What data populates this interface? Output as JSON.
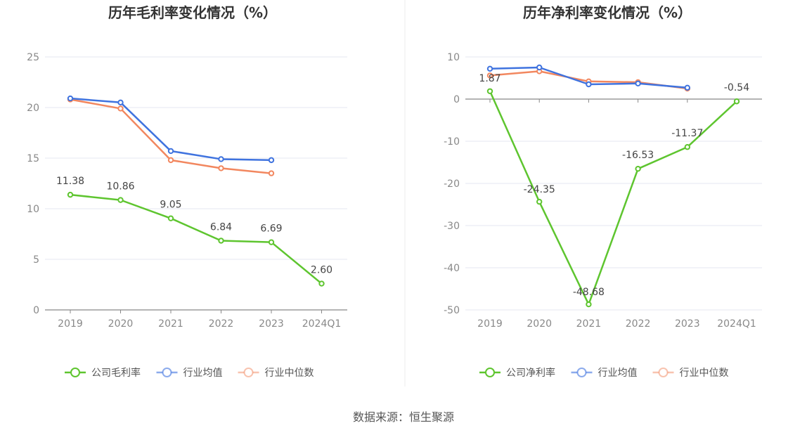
{
  "source": "数据来源：恒生聚源",
  "colors": {
    "company": "#5ec52f",
    "avg": "#3f73df",
    "median": "#f2875f",
    "grid": "#e4e7f0",
    "axis": "#888888"
  },
  "chart_data": [
    {
      "type": "line",
      "title": "历年毛利率变化情况（%）",
      "categories": [
        "2019",
        "2020",
        "2021",
        "2022",
        "2023",
        "2024Q1"
      ],
      "ylim": [
        0,
        25
      ],
      "yticks": [
        0,
        5,
        10,
        15,
        20,
        25
      ],
      "series": [
        {
          "key": "company",
          "name": "公司毛利率",
          "values": [
            11.38,
            10.86,
            9.05,
            6.84,
            6.69,
            2.6
          ],
          "labels": [
            "11.38",
            "10.86",
            "9.05",
            "6.84",
            "6.69",
            "2.60"
          ]
        },
        {
          "key": "avg",
          "name": "行业均值",
          "values": [
            20.9,
            20.5,
            15.7,
            14.9,
            14.8,
            null
          ]
        },
        {
          "key": "median",
          "name": "行业中位数",
          "values": [
            20.8,
            19.9,
            14.8,
            14.0,
            13.5,
            null
          ]
        }
      ]
    },
    {
      "type": "line",
      "title": "历年净利率变化情况（%）",
      "categories": [
        "2019",
        "2020",
        "2021",
        "2022",
        "2023",
        "2024Q1"
      ],
      "ylim": [
        -50,
        10
      ],
      "yticks": [
        -50,
        -40,
        -30,
        -20,
        -10,
        0,
        10
      ],
      "series": [
        {
          "key": "company",
          "name": "公司净利率",
          "values": [
            1.87,
            -24.35,
            -48.68,
            -16.53,
            -11.37,
            -0.54
          ],
          "labels": [
            "1.87",
            "-24.35",
            "-48.68",
            "-16.53",
            "-11.37",
            "-0.54"
          ]
        },
        {
          "key": "avg",
          "name": "行业均值",
          "values": [
            7.2,
            7.5,
            3.5,
            3.7,
            2.7,
            null
          ]
        },
        {
          "key": "median",
          "name": "行业中位数",
          "values": [
            5.6,
            6.6,
            4.2,
            4.0,
            2.5,
            null
          ]
        }
      ]
    }
  ]
}
